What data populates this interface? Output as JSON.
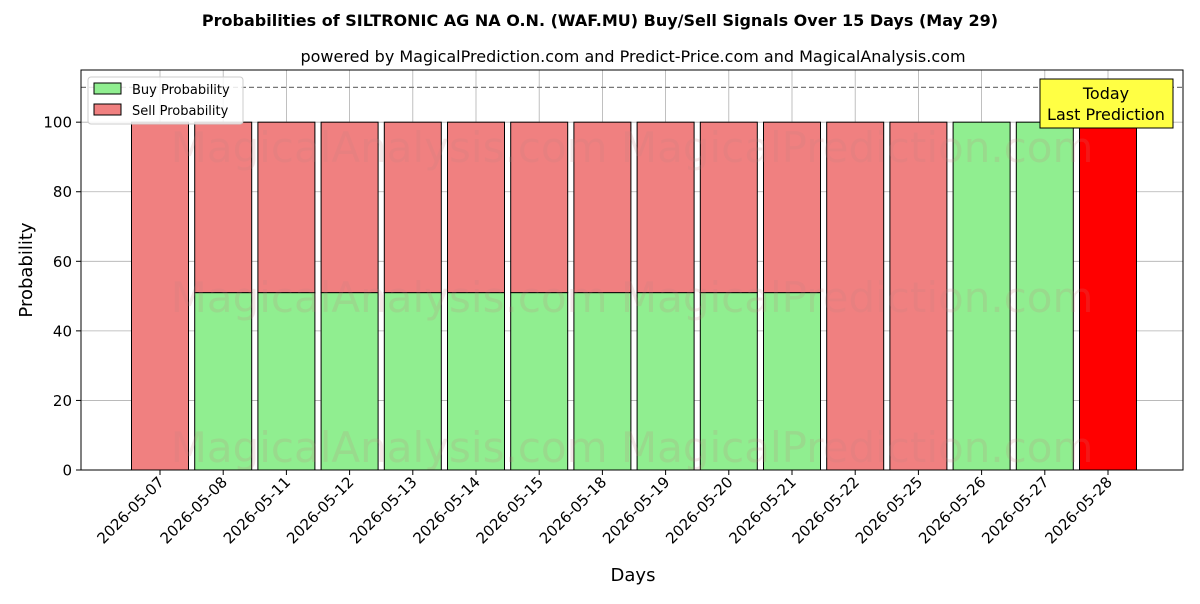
{
  "chart_data": {
    "type": "bar",
    "stacked": true,
    "title": "Probabilities of SILTRONIC AG NA O.N. (WAF.MU) Buy/Sell Signals Over 15 Days (May 29)",
    "subtitle": "powered by MagicalPrediction.com and Predict-Price.com and MagicalAnalysis.com",
    "xlabel": "Days",
    "ylabel": "Probability",
    "ylim": [
      0,
      115
    ],
    "yticks": [
      0,
      20,
      40,
      60,
      80,
      100
    ],
    "grid": true,
    "reference_line": 110,
    "legend_position": "top-left",
    "categories": [
      "2026-05-07",
      "2026-05-08",
      "2026-05-11",
      "2026-05-12",
      "2026-05-13",
      "2026-05-14",
      "2026-05-15",
      "2026-05-18",
      "2026-05-19",
      "2026-05-20",
      "2026-05-21",
      "2026-05-22",
      "2026-05-25",
      "2026-05-26",
      "2026-05-27",
      "2026-05-28"
    ],
    "series": [
      {
        "name": "Buy Probability",
        "color": "#90ee90",
        "values": [
          0,
          51,
          51,
          51,
          51,
          51,
          51,
          51,
          51,
          51,
          51,
          0,
          0,
          100,
          100,
          0
        ]
      },
      {
        "name": "Sell Probability",
        "color": "#f08080",
        "values": [
          100,
          49,
          49,
          49,
          49,
          49,
          49,
          49,
          49,
          49,
          49,
          100,
          100,
          0,
          0,
          100
        ]
      }
    ],
    "highlight": {
      "index": 15,
      "color": "#ff0000"
    },
    "annotation": {
      "line1": "Today",
      "line2": "Last Prediction",
      "background": "#ffff44"
    },
    "watermark": "MagicalAnalysis.com    MagicalPrediction.com"
  }
}
